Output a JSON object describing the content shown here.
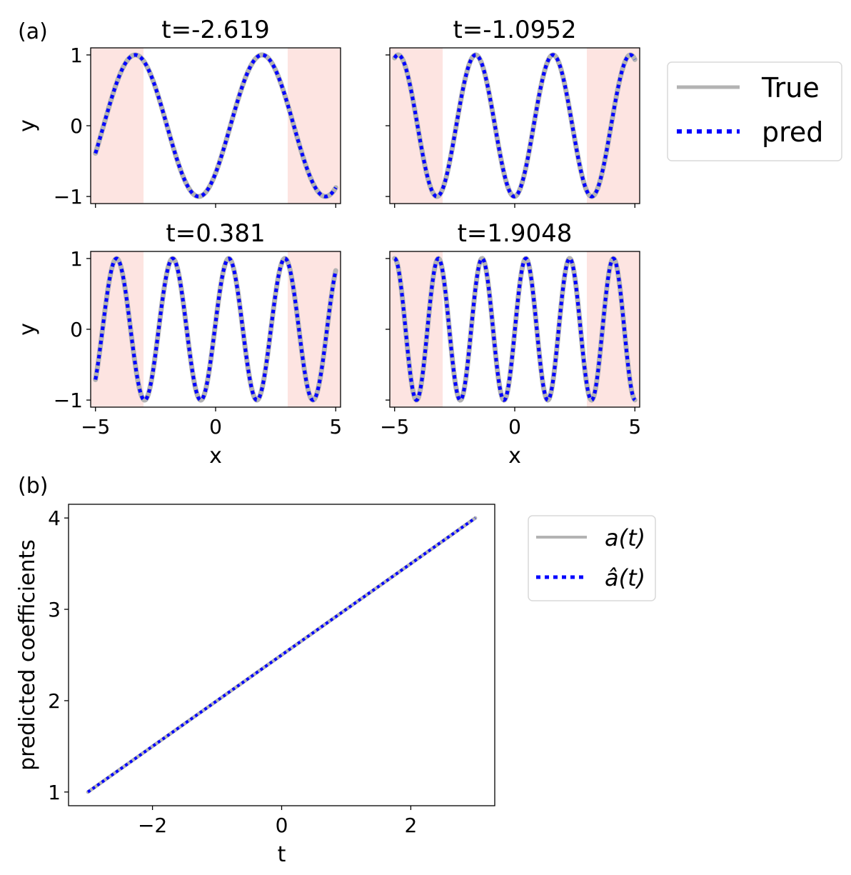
{
  "panel_labels": {
    "a": "(a)",
    "b": "(b)"
  },
  "chart_data": [
    {
      "type": "line",
      "title": "t=-2.619",
      "t": -2.619,
      "xlabel": "",
      "ylabel": "y",
      "xlim": [
        -5.2,
        5.2
      ],
      "ylim": [
        -1.1,
        1.1
      ],
      "xticks": [
        -5,
        0,
        5
      ],
      "xtick_labels": [
        "",
        "",
        ""
      ],
      "yticks": [
        1,
        0,
        -1
      ],
      "ytick_labels": [
        "1",
        "0",
        "−1"
      ],
      "shaded_regions": [
        [
          -5.2,
          -3.0
        ],
        [
          3.0,
          5.2
        ]
      ],
      "x_range": [
        -5,
        5
      ],
      "curve": {
        "amplitude": 1,
        "frequency": 1.19,
        "phase": 5.55
      },
      "series": [
        {
          "name": "True"
        },
        {
          "name": "pred"
        }
      ]
    },
    {
      "type": "line",
      "title": "t=-1.0952",
      "t": -1.0952,
      "xlabel": "",
      "ylabel": "",
      "xlim": [
        -5.2,
        5.2
      ],
      "ylim": [
        -1.1,
        1.1
      ],
      "xticks": [
        -5,
        0,
        5
      ],
      "xtick_labels": [
        "",
        "",
        ""
      ],
      "yticks": [
        1,
        0,
        -1
      ],
      "ytick_labels": [
        "",
        "",
        ""
      ],
      "shaded_regions": [
        [
          -5.2,
          -3.0
        ],
        [
          3.0,
          5.2
        ]
      ],
      "x_range": [
        -5,
        5
      ],
      "curve": {
        "amplitude": 1,
        "frequency": 1.95,
        "phase": 11.03
      },
      "series": [
        {
          "name": "True"
        },
        {
          "name": "pred"
        }
      ]
    },
    {
      "type": "line",
      "title": "t=0.381",
      "t": 0.381,
      "xlabel": "x",
      "ylabel": "y",
      "xlim": [
        -5.2,
        5.2
      ],
      "ylim": [
        -1.1,
        1.1
      ],
      "xticks": [
        -5,
        0,
        5
      ],
      "xtick_labels": [
        "−5",
        "0",
        "5"
      ],
      "yticks": [
        1,
        0,
        -1
      ],
      "ytick_labels": [
        "1",
        "0",
        "−1"
      ],
      "shaded_regions": [
        [
          -5.2,
          -3.0
        ],
        [
          3.0,
          5.2
        ]
      ],
      "x_range": [
        -5,
        5
      ],
      "curve": {
        "amplitude": 1,
        "frequency": 2.69,
        "phase": 12.66
      },
      "series": [
        {
          "name": "True"
        },
        {
          "name": "pred"
        }
      ]
    },
    {
      "type": "line",
      "title": "t=1.9048",
      "t": 1.9048,
      "xlabel": "x",
      "ylabel": "",
      "xlim": [
        -5.2,
        5.2
      ],
      "ylim": [
        -1.1,
        1.1
      ],
      "xticks": [
        -5,
        0,
        5
      ],
      "xtick_labels": [
        "−5",
        "0",
        "5"
      ],
      "yticks": [
        1,
        0,
        -1
      ],
      "ytick_labels": [
        "",
        "",
        ""
      ],
      "shaded_regions": [
        [
          -5.2,
          -3.0
        ],
        [
          3.0,
          5.2
        ]
      ],
      "x_range": [
        -5,
        5
      ],
      "curve": {
        "amplitude": 1,
        "frequency": 3.45,
        "phase": 18.82
      },
      "series": [
        {
          "name": "True"
        },
        {
          "name": "pred"
        }
      ]
    },
    {
      "type": "line",
      "title": "",
      "xlabel": "t",
      "ylabel": "predicted coefficients",
      "xlim": [
        -3.3,
        3.3
      ],
      "ylim": [
        0.85,
        4.15
      ],
      "xticks": [
        -2,
        0,
        2
      ],
      "xtick_labels": [
        "−2",
        "0",
        "2"
      ],
      "yticks": [
        1,
        2,
        3,
        4
      ],
      "ytick_labels": [
        "1",
        "2",
        "3",
        "4"
      ],
      "series": [
        {
          "name": "a(t)",
          "x": [
            -3,
            3
          ],
          "y": [
            1,
            4
          ]
        },
        {
          "name": "â(t)",
          "x": [
            -3,
            3
          ],
          "y": [
            1,
            4
          ]
        }
      ]
    }
  ],
  "legend_a": {
    "entries": [
      "True",
      "pred"
    ]
  },
  "legend_b": {
    "entries": [
      "a(t)",
      "â(t)"
    ]
  },
  "colors": {
    "true_line": "#b3b3b3",
    "pred_line": "#0000ff",
    "shade": "#fde4e1",
    "axis": "#000000",
    "legend_border": "#d9d9d9"
  }
}
